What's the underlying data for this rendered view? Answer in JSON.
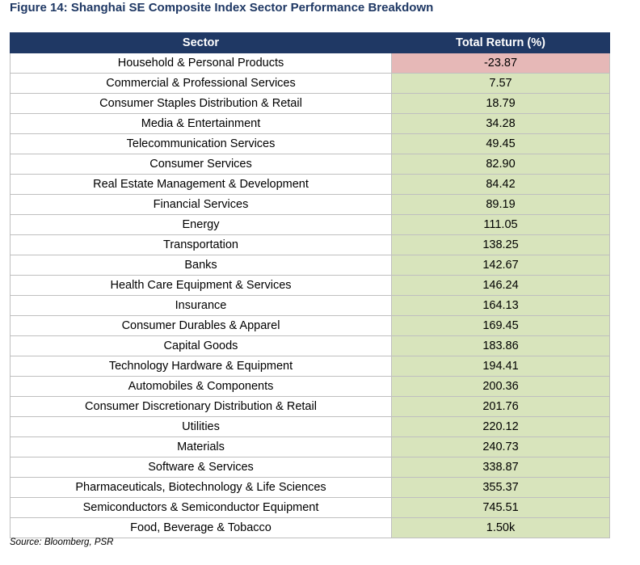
{
  "title": "Figure 14: Shanghai SE Composite Index Sector Performance Breakdown",
  "table": {
    "headers": [
      "Sector",
      "Total Return (%)"
    ],
    "rows": [
      {
        "sector": "Household & Personal Products",
        "return": "-23.87",
        "negative": true
      },
      {
        "sector": "Commercial & Professional Services",
        "return": "7.57"
      },
      {
        "sector": "Consumer Staples Distribution & Retail",
        "return": "18.79"
      },
      {
        "sector": "Media & Entertainment",
        "return": "34.28"
      },
      {
        "sector": "Telecommunication Services",
        "return": "49.45"
      },
      {
        "sector": "Consumer Services",
        "return": "82.90"
      },
      {
        "sector": "Real Estate Management & Development",
        "return": "84.42"
      },
      {
        "sector": "Financial Services",
        "return": "89.19"
      },
      {
        "sector": "Energy",
        "return": "111.05"
      },
      {
        "sector": "Transportation",
        "return": "138.25"
      },
      {
        "sector": "Banks",
        "return": "142.67"
      },
      {
        "sector": "Health Care Equipment & Services",
        "return": "146.24"
      },
      {
        "sector": "Insurance",
        "return": "164.13"
      },
      {
        "sector": "Consumer Durables & Apparel",
        "return": "169.45"
      },
      {
        "sector": "Capital Goods",
        "return": "183.86"
      },
      {
        "sector": "Technology Hardware & Equipment",
        "return": "194.41"
      },
      {
        "sector": "Automobiles & Components",
        "return": "200.36"
      },
      {
        "sector": "Consumer Discretionary Distribution & Retail",
        "return": "201.76"
      },
      {
        "sector": "Utilities",
        "return": "220.12"
      },
      {
        "sector": "Materials",
        "return": "240.73"
      },
      {
        "sector": "Software & Services",
        "return": "338.87"
      },
      {
        "sector": "Pharmaceuticals, Biotechnology & Life Sciences",
        "return": "355.37"
      },
      {
        "sector": "Semiconductors & Semiconductor Equipment",
        "return": "745.51"
      },
      {
        "sector": "Food, Beverage & Tobacco",
        "return": "1.50k"
      }
    ]
  },
  "source": "Source: Bloomberg, PSR",
  "colors": {
    "header_bg": "#1f3864",
    "title": "#1f3864",
    "positive_cell": "#d8e4bc",
    "negative_cell": "#e6b8b7"
  }
}
